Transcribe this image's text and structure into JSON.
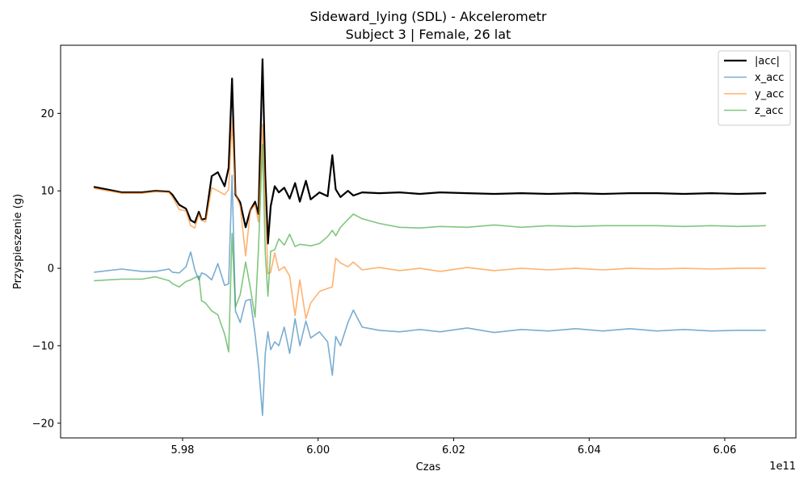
{
  "chart_data": {
    "type": "line",
    "title": "Sideward_lying (SDL) - Akcelerometr",
    "subtitle": "Subject 3 | Female, 26 lat",
    "xlabel": "Czas",
    "ylabel": "Przyspieszenie (g)",
    "x_offset_label": "1e11",
    "x_ticks": [
      5.98,
      6.0,
      6.02,
      6.04,
      6.06
    ],
    "x_tick_labels": [
      "5.98",
      "6.00",
      "6.02",
      "6.04",
      "6.06"
    ],
    "y_ticks": [
      -20,
      -10,
      0,
      10,
      20
    ],
    "y_tick_labels": [
      "−20",
      "−10",
      "0",
      "10",
      "20"
    ],
    "xlim": [
      5.962,
      6.0705
    ],
    "ylim": [
      -21.9,
      28.8
    ],
    "grid": false,
    "legend_position": "top-right",
    "series": [
      {
        "name": "|acc|",
        "color": "#000000",
        "width": 2.2,
        "opacity": 1,
        "points": [
          [
            5.967,
            10.5
          ],
          [
            5.971,
            9.8
          ],
          [
            5.974,
            9.8
          ],
          [
            5.976,
            10.0
          ],
          [
            5.978,
            9.9
          ],
          [
            5.9785,
            9.5
          ],
          [
            5.9795,
            8.2
          ],
          [
            5.9805,
            7.7
          ],
          [
            5.9812,
            6.2
          ],
          [
            5.9818,
            5.9
          ],
          [
            5.9824,
            7.3
          ],
          [
            5.9828,
            6.3
          ],
          [
            5.9834,
            6.4
          ],
          [
            5.9843,
            11.9
          ],
          [
            5.9852,
            12.4
          ],
          [
            5.9862,
            10.6
          ],
          [
            5.9868,
            13.0
          ],
          [
            5.9873,
            24.5
          ],
          [
            5.9878,
            9.5
          ],
          [
            5.9885,
            8.5
          ],
          [
            5.9893,
            5.3
          ],
          [
            5.99,
            7.5
          ],
          [
            5.9907,
            8.6
          ],
          [
            5.9912,
            7.0
          ],
          [
            5.9918,
            27.0
          ],
          [
            5.9922,
            12.0
          ],
          [
            5.9926,
            3.2
          ],
          [
            5.993,
            8.0
          ],
          [
            5.9936,
            10.6
          ],
          [
            5.9942,
            9.8
          ],
          [
            5.995,
            10.4
          ],
          [
            5.9958,
            9.0
          ],
          [
            5.9966,
            11.0
          ],
          [
            5.9973,
            8.6
          ],
          [
            5.9982,
            11.3
          ],
          [
            5.9989,
            8.9
          ],
          [
            6.0002,
            9.8
          ],
          [
            6.0014,
            9.3
          ],
          [
            6.0021,
            14.6
          ],
          [
            6.0026,
            10.2
          ],
          [
            6.0033,
            9.2
          ],
          [
            6.0044,
            10.0
          ],
          [
            6.0052,
            9.4
          ],
          [
            6.0065,
            9.8
          ],
          [
            6.009,
            9.7
          ],
          [
            6.012,
            9.8
          ],
          [
            6.015,
            9.6
          ],
          [
            6.018,
            9.8
          ],
          [
            6.022,
            9.7
          ],
          [
            6.026,
            9.6
          ],
          [
            6.03,
            9.7
          ],
          [
            6.034,
            9.6
          ],
          [
            6.038,
            9.7
          ],
          [
            6.042,
            9.6
          ],
          [
            6.046,
            9.7
          ],
          [
            6.05,
            9.7
          ],
          [
            6.054,
            9.6
          ],
          [
            6.058,
            9.7
          ],
          [
            6.062,
            9.6
          ],
          [
            6.066,
            9.7
          ]
        ]
      },
      {
        "name": "x_acc",
        "color": "#1f77b4",
        "width": 1.6,
        "opacity": 0.6,
        "points": [
          [
            5.967,
            -0.5
          ],
          [
            5.971,
            -0.1
          ],
          [
            5.974,
            -0.4
          ],
          [
            5.976,
            -0.4
          ],
          [
            5.978,
            -0.1
          ],
          [
            5.9785,
            -0.5
          ],
          [
            5.9795,
            -0.6
          ],
          [
            5.9805,
            0.2
          ],
          [
            5.9812,
            2.1
          ],
          [
            5.9818,
            -0.2
          ],
          [
            5.9824,
            -1.5
          ],
          [
            5.9828,
            -0.6
          ],
          [
            5.9834,
            -0.8
          ],
          [
            5.9843,
            -1.5
          ],
          [
            5.9852,
            0.6
          ],
          [
            5.9862,
            -2.2
          ],
          [
            5.9868,
            -2.0
          ],
          [
            5.9873,
            12.0
          ],
          [
            5.9878,
            -5.5
          ],
          [
            5.9885,
            -7.0
          ],
          [
            5.9893,
            -4.2
          ],
          [
            5.99,
            -4.0
          ],
          [
            5.9907,
            -8.5
          ],
          [
            5.9912,
            -12.5
          ],
          [
            5.9918,
            -19.0
          ],
          [
            5.9922,
            -11.0
          ],
          [
            5.9926,
            -8.2
          ],
          [
            5.993,
            -10.5
          ],
          [
            5.9936,
            -9.5
          ],
          [
            5.9942,
            -10.0
          ],
          [
            5.995,
            -7.6
          ],
          [
            5.9958,
            -11.0
          ],
          [
            5.9966,
            -6.5
          ],
          [
            5.9973,
            -10.0
          ],
          [
            5.9982,
            -6.8
          ],
          [
            5.9989,
            -9.0
          ],
          [
            6.0002,
            -8.2
          ],
          [
            6.0014,
            -9.5
          ],
          [
            6.0021,
            -13.8
          ],
          [
            6.0026,
            -8.8
          ],
          [
            6.0033,
            -10.0
          ],
          [
            6.0044,
            -7.0
          ],
          [
            6.0052,
            -5.4
          ],
          [
            6.0065,
            -7.6
          ],
          [
            6.009,
            -8.0
          ],
          [
            6.012,
            -8.2
          ],
          [
            6.015,
            -7.9
          ],
          [
            6.018,
            -8.2
          ],
          [
            6.022,
            -7.7
          ],
          [
            6.026,
            -8.3
          ],
          [
            6.03,
            -7.9
          ],
          [
            6.034,
            -8.1
          ],
          [
            6.038,
            -7.8
          ],
          [
            6.042,
            -8.1
          ],
          [
            6.046,
            -7.8
          ],
          [
            6.05,
            -8.1
          ],
          [
            6.054,
            -7.9
          ],
          [
            6.058,
            -8.1
          ],
          [
            6.062,
            -8.0
          ],
          [
            6.066,
            -8.0
          ]
        ]
      },
      {
        "name": "y_acc",
        "color": "#ff7f0e",
        "width": 1.6,
        "opacity": 0.6,
        "points": [
          [
            5.967,
            10.3
          ],
          [
            5.971,
            9.7
          ],
          [
            5.974,
            9.7
          ],
          [
            5.976,
            9.9
          ],
          [
            5.978,
            9.8
          ],
          [
            5.9785,
            9.2
          ],
          [
            5.9795,
            7.6
          ],
          [
            5.9805,
            7.4
          ],
          [
            5.9812,
            5.5
          ],
          [
            5.9818,
            5.2
          ],
          [
            5.9824,
            7.0
          ],
          [
            5.9828,
            6.2
          ],
          [
            5.9834,
            6.0
          ],
          [
            5.9843,
            10.4
          ],
          [
            5.9852,
            10.0
          ],
          [
            5.9862,
            9.5
          ],
          [
            5.9868,
            10.2
          ],
          [
            5.9873,
            19.0
          ],
          [
            5.9878,
            9.8
          ],
          [
            5.9885,
            8.0
          ],
          [
            5.9893,
            1.6
          ],
          [
            5.99,
            7.5
          ],
          [
            5.9907,
            8.2
          ],
          [
            5.9912,
            6.0
          ],
          [
            5.9918,
            18.6
          ],
          [
            5.9922,
            8.5
          ],
          [
            5.9926,
            -0.7
          ],
          [
            5.993,
            -0.5
          ],
          [
            5.9936,
            2.0
          ],
          [
            5.9942,
            -0.3
          ],
          [
            5.995,
            0.2
          ],
          [
            5.9958,
            -1.0
          ],
          [
            5.9966,
            -6.1
          ],
          [
            5.9973,
            -1.5
          ],
          [
            5.9982,
            -6.5
          ],
          [
            5.9989,
            -4.5
          ],
          [
            6.0002,
            -3.0
          ],
          [
            6.0014,
            -2.6
          ],
          [
            6.0021,
            -2.4
          ],
          [
            6.0026,
            1.3
          ],
          [
            6.0033,
            0.7
          ],
          [
            6.0044,
            0.2
          ],
          [
            6.0052,
            0.8
          ],
          [
            6.0065,
            -0.2
          ],
          [
            6.009,
            0.1
          ],
          [
            6.012,
            -0.3
          ],
          [
            6.015,
            0.0
          ],
          [
            6.018,
            -0.4
          ],
          [
            6.022,
            0.1
          ],
          [
            6.026,
            -0.3
          ],
          [
            6.03,
            0.0
          ],
          [
            6.034,
            -0.2
          ],
          [
            6.038,
            0.0
          ],
          [
            6.042,
            -0.2
          ],
          [
            6.046,
            0.0
          ],
          [
            6.05,
            -0.1
          ],
          [
            6.054,
            0.0
          ],
          [
            6.058,
            -0.1
          ],
          [
            6.062,
            0.0
          ],
          [
            6.066,
            0.0
          ]
        ]
      },
      {
        "name": "z_acc",
        "color": "#2ca02c",
        "width": 1.6,
        "opacity": 0.6,
        "points": [
          [
            5.967,
            -1.6
          ],
          [
            5.971,
            -1.4
          ],
          [
            5.974,
            -1.4
          ],
          [
            5.976,
            -1.1
          ],
          [
            5.978,
            -1.6
          ],
          [
            5.9785,
            -2.0
          ],
          [
            5.9795,
            -2.4
          ],
          [
            5.9805,
            -1.7
          ],
          [
            5.9812,
            -1.5
          ],
          [
            5.9818,
            -1.2
          ],
          [
            5.9824,
            -1.0
          ],
          [
            5.9828,
            -4.2
          ],
          [
            5.9834,
            -4.5
          ],
          [
            5.9843,
            -5.5
          ],
          [
            5.9852,
            -6.0
          ],
          [
            5.9862,
            -8.5
          ],
          [
            5.9868,
            -10.8
          ],
          [
            5.9873,
            4.5
          ],
          [
            5.9878,
            -5.0
          ],
          [
            5.9885,
            -3.4
          ],
          [
            5.9893,
            0.8
          ],
          [
            5.99,
            -2.5
          ],
          [
            5.9907,
            -6.3
          ],
          [
            5.9912,
            2.5
          ],
          [
            5.9918,
            16.0
          ],
          [
            5.9922,
            2.0
          ],
          [
            5.9926,
            -3.6
          ],
          [
            5.993,
            2.2
          ],
          [
            5.9936,
            2.4
          ],
          [
            5.9942,
            3.8
          ],
          [
            5.995,
            3.0
          ],
          [
            5.9958,
            4.4
          ],
          [
            5.9966,
            2.8
          ],
          [
            5.9973,
            3.1
          ],
          [
            5.9982,
            3.0
          ],
          [
            5.9989,
            2.9
          ],
          [
            6.0002,
            3.2
          ],
          [
            6.0014,
            4.1
          ],
          [
            6.0021,
            4.9
          ],
          [
            6.0026,
            4.2
          ],
          [
            6.0033,
            5.3
          ],
          [
            6.0044,
            6.3
          ],
          [
            6.0052,
            7.0
          ],
          [
            6.0065,
            6.4
          ],
          [
            6.009,
            5.8
          ],
          [
            6.012,
            5.3
          ],
          [
            6.015,
            5.2
          ],
          [
            6.018,
            5.4
          ],
          [
            6.022,
            5.3
          ],
          [
            6.026,
            5.6
          ],
          [
            6.03,
            5.3
          ],
          [
            6.034,
            5.5
          ],
          [
            6.038,
            5.4
          ],
          [
            6.042,
            5.5
          ],
          [
            6.046,
            5.5
          ],
          [
            6.05,
            5.5
          ],
          [
            6.054,
            5.4
          ],
          [
            6.058,
            5.5
          ],
          [
            6.062,
            5.4
          ],
          [
            6.066,
            5.5
          ]
        ]
      }
    ]
  }
}
